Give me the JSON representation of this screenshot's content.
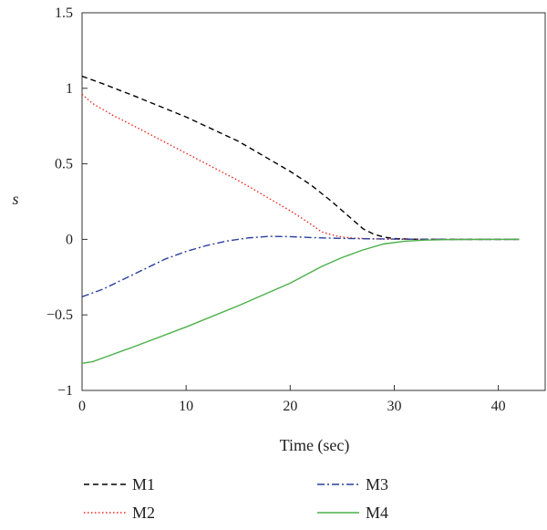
{
  "chart_data": {
    "type": "line",
    "title": "",
    "xlabel": "Time (sec)",
    "ylabel": "s",
    "xlim": [
      0,
      44.5
    ],
    "ylim": [
      -1,
      1.5
    ],
    "xticks": [
      0,
      10,
      20,
      30,
      40
    ],
    "yticks": [
      1.5,
      1,
      0.5,
      0,
      -0.5,
      -1
    ],
    "ytick_labels": [
      "1.5",
      "1",
      "0.5",
      "0",
      "−0.5",
      "−1"
    ],
    "grid": false,
    "legend_position": "below plot, two columns",
    "series": [
      {
        "name": "M1",
        "color": "#000000",
        "dash": "dashed",
        "x": [
          0,
          2,
          5,
          10,
          15,
          20,
          22,
          24,
          26,
          27,
          28,
          29,
          30,
          32,
          35,
          40,
          42
        ],
        "y": [
          1.08,
          1.03,
          0.95,
          0.81,
          0.65,
          0.45,
          0.36,
          0.25,
          0.13,
          0.07,
          0.035,
          0.015,
          0.005,
          0.001,
          0.0,
          0.0,
          0.0
        ]
      },
      {
        "name": "M2",
        "color": "#e8281f",
        "dash": "dotted",
        "x": [
          0,
          1,
          3,
          5,
          10,
          15,
          20,
          22,
          23,
          24,
          25,
          26,
          28,
          30,
          35,
          42
        ],
        "y": [
          0.96,
          0.9,
          0.82,
          0.75,
          0.57,
          0.39,
          0.19,
          0.1,
          0.05,
          0.03,
          0.015,
          0.008,
          0.003,
          0.001,
          0.0,
          0.0
        ]
      },
      {
        "name": "M3",
        "color": "#2a3f9e",
        "dash": "dashdot",
        "x": [
          0,
          2,
          5,
          8,
          10,
          12,
          14,
          16,
          18,
          20,
          22,
          25,
          30,
          35,
          42
        ],
        "y": [
          -0.38,
          -0.33,
          -0.23,
          -0.13,
          -0.08,
          -0.04,
          -0.01,
          0.01,
          0.02,
          0.018,
          0.012,
          0.006,
          0.002,
          0.0,
          0.0
        ]
      },
      {
        "name": "M4",
        "color": "#4bb04a",
        "dash": "solid",
        "x": [
          0,
          1,
          3,
          5,
          10,
          15,
          20,
          23,
          25,
          27,
          29,
          31,
          33,
          35,
          38,
          42
        ],
        "y": [
          -0.82,
          -0.81,
          -0.76,
          -0.71,
          -0.58,
          -0.44,
          -0.29,
          -0.18,
          -0.12,
          -0.07,
          -0.03,
          -0.012,
          -0.005,
          -0.002,
          0.0,
          0.0
        ]
      }
    ]
  }
}
